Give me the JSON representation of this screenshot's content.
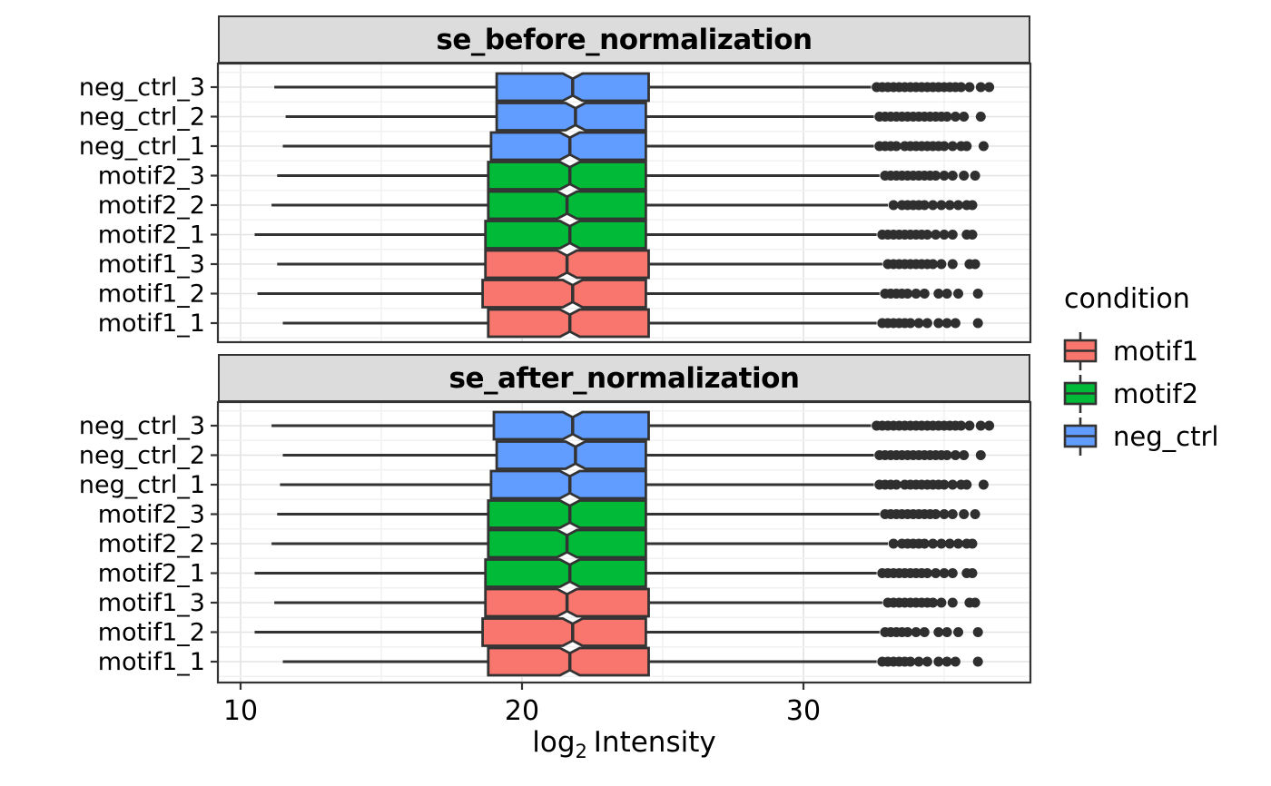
{
  "chart_data": {
    "type": "boxplot",
    "orientation": "horizontal",
    "xlabel": "log₂ Intensity",
    "xlabel_parts": {
      "base": "log",
      "sub": "2",
      "rest": "Intensity"
    },
    "ylabel": "",
    "x_ticks": [
      10,
      20,
      30
    ],
    "x_minor_ticks": [
      15,
      25,
      35
    ],
    "x_range": [
      9.2,
      38.1
    ],
    "grid": true,
    "categories_top_to_bottom": [
      "neg_ctrl_3",
      "neg_ctrl_2",
      "neg_ctrl_1",
      "motif2_3",
      "motif2_2",
      "motif2_1",
      "motif1_3",
      "motif1_2",
      "motif1_1"
    ],
    "condition_colors": {
      "motif1": "#F8766D",
      "motif2": "#00BA38",
      "neg_ctrl": "#619CFF"
    },
    "style": {
      "box_stroke": "#333333",
      "outlier_color": "#2F2F2F",
      "grid_major": "#E3E3E3",
      "grid_minor": "#F1F1F1",
      "strip_bg": "#DCDCDC",
      "panel_bg": "#FFFFFF",
      "notched": true,
      "notch_half_width": 0.35
    },
    "legend": {
      "title": "condition",
      "entries": [
        {
          "label": "motif1",
          "color": "#F8766D"
        },
        {
          "label": "motif2",
          "color": "#00BA38"
        },
        {
          "label": "neg_ctrl",
          "color": "#619CFF"
        }
      ]
    },
    "facets": [
      {
        "title": "se_before_normalization",
        "boxes": [
          {
            "sample": "neg_ctrl_3",
            "condition": "neg_ctrl",
            "whisker_low": 11.2,
            "q1": 19.1,
            "median": 21.8,
            "q3": 24.5,
            "whisker_high": 32.4,
            "outliers": [
              32.6,
              32.8,
              33.0,
              33.2,
              33.4,
              33.6,
              33.8,
              34.0,
              34.2,
              34.4,
              34.6,
              34.8,
              35.0,
              35.2,
              35.4,
              35.6,
              35.9,
              36.3,
              36.6
            ]
          },
          {
            "sample": "neg_ctrl_2",
            "condition": "neg_ctrl",
            "whisker_low": 11.6,
            "q1": 19.1,
            "median": 21.9,
            "q3": 24.4,
            "whisker_high": 32.5,
            "outliers": [
              32.7,
              32.9,
              33.1,
              33.3,
              33.5,
              33.7,
              33.9,
              34.1,
              34.3,
              34.5,
              34.7,
              34.9,
              35.1,
              35.4,
              35.7,
              36.3
            ]
          },
          {
            "sample": "neg_ctrl_1",
            "condition": "neg_ctrl",
            "whisker_low": 11.5,
            "q1": 18.9,
            "median": 21.7,
            "q3": 24.4,
            "whisker_high": 32.5,
            "outliers": [
              32.7,
              32.9,
              33.1,
              33.3,
              33.6,
              33.8,
              34.0,
              34.2,
              34.4,
              34.6,
              34.8,
              35.0,
              35.3,
              35.6,
              35.8,
              36.4
            ]
          },
          {
            "sample": "motif2_3",
            "condition": "motif2",
            "whisker_low": 11.3,
            "q1": 18.8,
            "median": 21.7,
            "q3": 24.4,
            "whisker_high": 32.7,
            "outliers": [
              32.9,
              33.1,
              33.3,
              33.5,
              33.7,
              33.9,
              34.1,
              34.3,
              34.5,
              34.7,
              35.0,
              35.3,
              35.7,
              36.1
            ]
          },
          {
            "sample": "motif2_2",
            "condition": "motif2",
            "whisker_low": 11.1,
            "q1": 18.8,
            "median": 21.6,
            "q3": 24.4,
            "whisker_high": 33.0,
            "outliers": [
              33.2,
              33.5,
              33.7,
              33.9,
              34.1,
              34.3,
              34.6,
              34.9,
              35.2,
              35.5,
              35.8,
              36.0
            ]
          },
          {
            "sample": "motif2_1",
            "condition": "motif2",
            "whisker_low": 10.5,
            "q1": 18.7,
            "median": 21.7,
            "q3": 24.4,
            "whisker_high": 32.6,
            "outliers": [
              32.8,
              33.0,
              33.2,
              33.4,
              33.6,
              33.8,
              34.0,
              34.2,
              34.4,
              34.7,
              35.0,
              35.3,
              35.8,
              36.0
            ]
          },
          {
            "sample": "motif1_3",
            "condition": "motif1",
            "whisker_low": 11.3,
            "q1": 18.7,
            "median": 21.6,
            "q3": 24.5,
            "whisker_high": 32.8,
            "outliers": [
              33.0,
              33.2,
              33.4,
              33.6,
              33.8,
              34.0,
              34.2,
              34.4,
              34.6,
              34.9,
              35.3,
              35.9,
              36.1
            ]
          },
          {
            "sample": "motif1_2",
            "condition": "motif1",
            "whisker_low": 10.6,
            "q1": 18.6,
            "median": 21.8,
            "q3": 24.4,
            "whisker_high": 32.7,
            "outliers": [
              32.9,
              33.1,
              33.3,
              33.5,
              33.7,
              34.0,
              34.3,
              34.8,
              35.1,
              35.5,
              36.2
            ]
          },
          {
            "sample": "motif1_1",
            "condition": "motif1",
            "whisker_low": 11.5,
            "q1": 18.8,
            "median": 21.7,
            "q3": 24.5,
            "whisker_high": 32.6,
            "outliers": [
              32.8,
              33.0,
              33.2,
              33.4,
              33.6,
              33.8,
              34.1,
              34.4,
              34.8,
              35.1,
              35.4,
              36.2
            ]
          }
        ]
      },
      {
        "title": "se_after_normalization",
        "boxes": [
          {
            "sample": "neg_ctrl_3",
            "condition": "neg_ctrl",
            "whisker_low": 11.1,
            "q1": 19.0,
            "median": 21.8,
            "q3": 24.5,
            "whisker_high": 32.4,
            "outliers": [
              32.6,
              32.8,
              33.0,
              33.2,
              33.4,
              33.6,
              33.8,
              34.0,
              34.2,
              34.4,
              34.6,
              34.8,
              35.0,
              35.2,
              35.4,
              35.6,
              35.9,
              36.3,
              36.6
            ]
          },
          {
            "sample": "neg_ctrl_2",
            "condition": "neg_ctrl",
            "whisker_low": 11.5,
            "q1": 19.1,
            "median": 21.9,
            "q3": 24.4,
            "whisker_high": 32.5,
            "outliers": [
              32.7,
              32.9,
              33.1,
              33.3,
              33.5,
              33.7,
              33.9,
              34.1,
              34.3,
              34.5,
              34.7,
              34.9,
              35.1,
              35.4,
              35.7,
              36.3
            ]
          },
          {
            "sample": "neg_ctrl_1",
            "condition": "neg_ctrl",
            "whisker_low": 11.4,
            "q1": 18.9,
            "median": 21.7,
            "q3": 24.4,
            "whisker_high": 32.5,
            "outliers": [
              32.7,
              32.9,
              33.1,
              33.3,
              33.6,
              33.8,
              34.0,
              34.2,
              34.4,
              34.6,
              34.8,
              35.0,
              35.3,
              35.6,
              35.8,
              36.4
            ]
          },
          {
            "sample": "motif2_3",
            "condition": "motif2",
            "whisker_low": 11.3,
            "q1": 18.8,
            "median": 21.7,
            "q3": 24.4,
            "whisker_high": 32.7,
            "outliers": [
              32.9,
              33.1,
              33.3,
              33.5,
              33.7,
              33.9,
              34.1,
              34.3,
              34.5,
              34.7,
              35.0,
              35.3,
              35.7,
              36.1
            ]
          },
          {
            "sample": "motif2_2",
            "condition": "motif2",
            "whisker_low": 11.1,
            "q1": 18.8,
            "median": 21.6,
            "q3": 24.4,
            "whisker_high": 33.0,
            "outliers": [
              33.2,
              33.5,
              33.7,
              33.9,
              34.1,
              34.3,
              34.6,
              34.9,
              35.2,
              35.5,
              35.8,
              36.0
            ]
          },
          {
            "sample": "motif2_1",
            "condition": "motif2",
            "whisker_low": 10.5,
            "q1": 18.7,
            "median": 21.7,
            "q3": 24.4,
            "whisker_high": 32.6,
            "outliers": [
              32.8,
              33.0,
              33.2,
              33.4,
              33.6,
              33.8,
              34.0,
              34.2,
              34.4,
              34.7,
              35.0,
              35.3,
              35.8,
              36.0
            ]
          },
          {
            "sample": "motif1_3",
            "condition": "motif1",
            "whisker_low": 11.2,
            "q1": 18.7,
            "median": 21.6,
            "q3": 24.5,
            "whisker_high": 32.8,
            "outliers": [
              33.0,
              33.2,
              33.4,
              33.6,
              33.8,
              34.0,
              34.2,
              34.4,
              34.6,
              34.9,
              35.3,
              35.9,
              36.1
            ]
          },
          {
            "sample": "motif1_2",
            "condition": "motif1",
            "whisker_low": 10.5,
            "q1": 18.6,
            "median": 21.8,
            "q3": 24.4,
            "whisker_high": 32.7,
            "outliers": [
              32.9,
              33.1,
              33.3,
              33.5,
              33.7,
              34.0,
              34.3,
              34.8,
              35.1,
              35.5,
              36.2
            ]
          },
          {
            "sample": "motif1_1",
            "condition": "motif1",
            "whisker_low": 11.5,
            "q1": 18.8,
            "median": 21.7,
            "q3": 24.5,
            "whisker_high": 32.6,
            "outliers": [
              32.8,
              33.0,
              33.2,
              33.4,
              33.6,
              33.8,
              34.1,
              34.4,
              34.8,
              35.1,
              35.4,
              36.2
            ]
          }
        ]
      }
    ]
  }
}
